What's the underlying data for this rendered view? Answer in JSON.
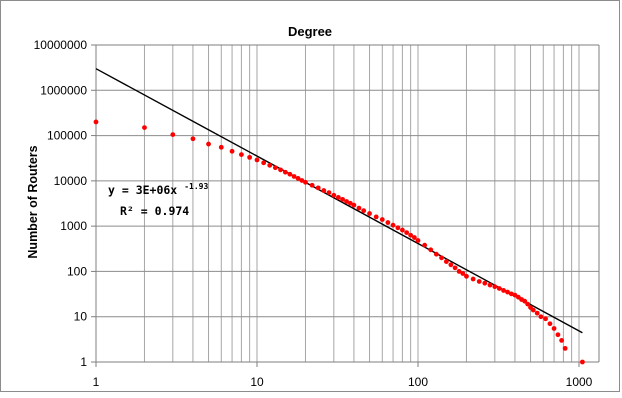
{
  "chart_data": {
    "type": "scatter",
    "title": "Degree",
    "xlabel": "",
    "ylabel": "Number of Routers",
    "x_scale": "log",
    "y_scale": "log",
    "xlim": [
      1,
      1000
    ],
    "ylim": [
      1,
      10000000
    ],
    "x_ticks": [
      "1",
      "10",
      "100",
      "1000"
    ],
    "y_ticks": [
      "1",
      "10",
      "100",
      "1000",
      "10000",
      "100000",
      "1000000",
      "10000000"
    ],
    "grid": true,
    "marker_color": "#ff0000",
    "trendline_color": "#000000",
    "trendline": {
      "type": "power",
      "coefficient": 3000000,
      "exponent": -1.93,
      "equation_main": "y = 3E+06x",
      "equation_exp": "-1.93",
      "r2_label": "R² = 0.974"
    },
    "series": [
      {
        "x": [
          1,
          2,
          3,
          4,
          5,
          6,
          7,
          8,
          9,
          10,
          11,
          12,
          13,
          14,
          15,
          16,
          17,
          18,
          19,
          20,
          22,
          24,
          26,
          28,
          30,
          32,
          34,
          36,
          38,
          40,
          43,
          46,
          50,
          55,
          60,
          65,
          70,
          75,
          80,
          85,
          90,
          95,
          100,
          110,
          120,
          130,
          140,
          150,
          160,
          170,
          180,
          190,
          200,
          220,
          240,
          260,
          280,
          300,
          320,
          340,
          360,
          380,
          400,
          420,
          440,
          460,
          480,
          500,
          520,
          550,
          580,
          620,
          660,
          700,
          740,
          780,
          820,
          1050
        ],
        "y": [
          200000,
          150000,
          105000,
          85000,
          65000,
          55000,
          45000,
          38000,
          33000,
          29000,
          25000,
          22000,
          19500,
          17500,
          15500,
          14000,
          12500,
          11300,
          10200,
          9300,
          8000,
          7000,
          6100,
          5500,
          4800,
          4300,
          3900,
          3500,
          3200,
          2900,
          2500,
          2200,
          1900,
          1600,
          1400,
          1200,
          1050,
          920,
          820,
          720,
          630,
          560,
          480,
          380,
          300,
          240,
          200,
          165,
          140,
          120,
          100,
          90,
          78,
          68,
          60,
          55,
          50,
          46,
          42,
          38,
          35,
          32,
          30,
          27,
          24,
          22,
          19,
          16,
          14,
          12,
          10,
          9,
          7,
          5.5,
          4,
          3,
          2,
          1
        ]
      }
    ]
  }
}
